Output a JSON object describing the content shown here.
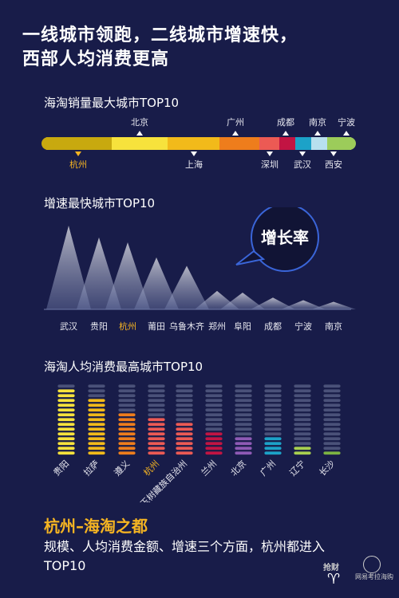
{
  "headline": {
    "line1": "一线城市领跑，二线城市增速快，",
    "line2": "西部人均消费更高"
  },
  "section1": {
    "title": "海淘销量最大城市TOP10",
    "top_labels": [
      {
        "name": "北京",
        "color": "#ffffff"
      },
      {
        "name": "广州",
        "color": "#ffffff"
      },
      {
        "name": "成都",
        "color": "#ffffff"
      },
      {
        "name": "南京",
        "color": "#ffffff"
      },
      {
        "name": "宁波",
        "color": "#ffffff"
      }
    ],
    "bottom_labels": [
      {
        "name": "杭州",
        "highlight": true
      },
      {
        "name": "上海",
        "highlight": false
      },
      {
        "name": "深圳",
        "highlight": false
      },
      {
        "name": "武汉",
        "highlight": false
      },
      {
        "name": "西安",
        "highlight": false
      }
    ],
    "segment_colors": [
      "#c8a90f",
      "#f7e23c",
      "#f2ba1a",
      "#ee7d1c",
      "#ec5a54",
      "#c21443",
      "#1ca2c8",
      "#b8e0ee",
      "#9ccc5a"
    ]
  },
  "section2": {
    "title": "增速最快城市TOP10",
    "bubble": "增长率",
    "cities": [
      "武汉",
      "贵阳",
      "杭州",
      "莆田",
      "乌鲁木齐",
      "郑州",
      "阜阳",
      "成都",
      "宁波",
      "南京"
    ],
    "highlight_index": 2,
    "relative_growth": [
      1.0,
      0.86,
      0.8,
      0.62,
      0.52,
      0.22,
      0.2,
      0.14,
      0.11,
      0.09
    ]
  },
  "section3": {
    "title": "海淘人均消费最高城市TOP10",
    "cities": [
      "贵阳",
      "拉萨",
      "遵义",
      "杭州",
      "玉树藏族自治州",
      "兰州",
      "北京",
      "广州",
      "辽宁",
      "长沙"
    ],
    "highlight_index": 3,
    "colors": [
      "#f7e23c",
      "#f2ba1a",
      "#ee7d1c",
      "#ec5a54",
      "#ec5a54",
      "#c21443",
      "#8e5ab5",
      "#1ca2c8",
      "#a8d050",
      "#7cb342"
    ],
    "filled_coins": [
      14,
      12,
      9,
      8,
      7,
      5,
      4,
      4,
      2,
      1
    ]
  },
  "footer": {
    "title": "杭州–海淘之都",
    "text": "规模、人均消费金额、增速三个方面，杭州都进入TOP10"
  },
  "logos": {
    "left": "抢财",
    "right": "网易考拉海购"
  }
}
